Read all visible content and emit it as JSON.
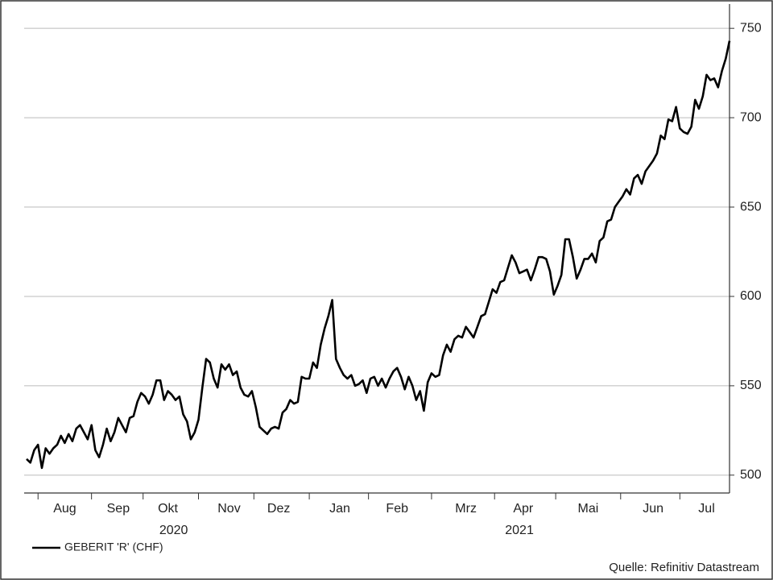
{
  "chart_data": {
    "type": "line",
    "source": "Quelle: Refinitiv Datastream",
    "legend": "bottom-left",
    "grid": true,
    "ylim": [
      490,
      760
    ],
    "yticks": [
      500,
      550,
      600,
      650,
      700,
      750
    ],
    "x_groups": [
      "2020",
      "2021"
    ],
    "categories": [
      null,
      null,
      null,
      null,
      null,
      null,
      null,
      null,
      null,
      null,
      "Aug",
      null,
      null,
      null,
      null,
      null,
      null,
      null,
      null,
      null,
      null,
      null,
      null,
      null,
      "Sep",
      null,
      null,
      null,
      null,
      null,
      null,
      null,
      null,
      null,
      null,
      null,
      null,
      "Okt",
      null,
      null,
      null,
      null,
      null,
      null,
      null,
      null,
      null,
      null,
      null,
      null,
      null,
      null,
      null,
      "Nov",
      null,
      null,
      null,
      null,
      null,
      null,
      null,
      null,
      null,
      null,
      null,
      null,
      "Dez",
      null,
      null,
      null,
      null,
      null,
      null,
      null,
      null,
      null,
      null,
      null,
      null,
      null,
      null,
      null,
      "Jan",
      null,
      null,
      null,
      null,
      null,
      null,
      null,
      null,
      null,
      null,
      null,
      null,
      null,
      null,
      "Feb",
      null,
      null,
      null,
      null,
      null,
      null,
      null,
      null,
      null,
      null,
      null,
      null,
      null,
      null,
      null,
      null,
      null,
      "Mrz",
      null,
      null,
      null,
      null,
      null,
      null,
      null,
      null,
      null,
      null,
      null,
      null,
      null,
      null,
      "Apr",
      null,
      null,
      null,
      null,
      null,
      null,
      null,
      null,
      null,
      null,
      null,
      null,
      null,
      null,
      null,
      null,
      "Mai",
      null,
      null,
      null,
      null,
      null,
      null,
      null,
      null,
      null,
      null,
      null,
      null,
      null,
      null,
      null,
      null,
      "Jun",
      null,
      null,
      null,
      null,
      null,
      null,
      null,
      null,
      null,
      null,
      null,
      null,
      null,
      "Jul",
      null,
      null,
      null,
      null,
      null,
      null
    ],
    "series": [
      {
        "name": "GEBERIT 'R' (CHF)",
        "color": "#000000",
        "values": [
          509,
          507,
          514,
          517,
          504,
          515,
          512,
          515,
          517,
          522,
          518,
          523,
          519,
          526,
          528,
          524,
          520,
          528,
          514,
          510,
          517,
          526,
          519,
          524,
          532,
          528,
          524,
          532,
          533,
          541,
          546,
          544,
          540,
          545,
          553,
          553,
          542,
          547,
          545,
          542,
          544,
          534,
          530,
          520,
          524,
          531,
          549,
          565,
          563,
          554,
          549,
          562,
          559,
          562,
          556,
          558,
          549,
          545,
          544,
          547,
          538,
          527,
          525,
          523,
          526,
          527,
          526,
          535,
          537,
          542,
          540,
          541,
          555,
          554,
          554,
          563,
          560,
          573,
          582,
          589,
          598,
          565,
          560,
          556,
          554,
          556,
          550,
          551,
          553,
          546,
          554,
          555,
          550,
          554,
          549,
          554,
          558,
          560,
          555,
          548,
          555,
          550,
          542,
          547,
          536,
          552,
          557,
          555,
          556,
          567,
          573,
          569,
          576,
          578,
          577,
          583,
          580,
          577,
          583,
          589,
          590,
          597,
          604,
          602,
          608,
          609,
          616,
          623,
          619,
          613,
          614,
          615,
          609,
          615,
          622,
          622,
          621,
          614,
          601,
          606,
          612,
          632,
          632,
          622,
          610,
          615,
          621,
          621,
          624,
          619,
          631,
          633,
          642,
          643,
          650,
          653,
          656,
          660,
          657,
          666,
          668,
          663,
          670,
          673,
          676,
          680,
          690,
          688,
          699,
          698,
          706,
          694,
          692,
          691,
          695,
          710,
          705,
          712,
          724,
          721,
          722,
          717,
          726,
          733,
          743
        ]
      }
    ]
  }
}
